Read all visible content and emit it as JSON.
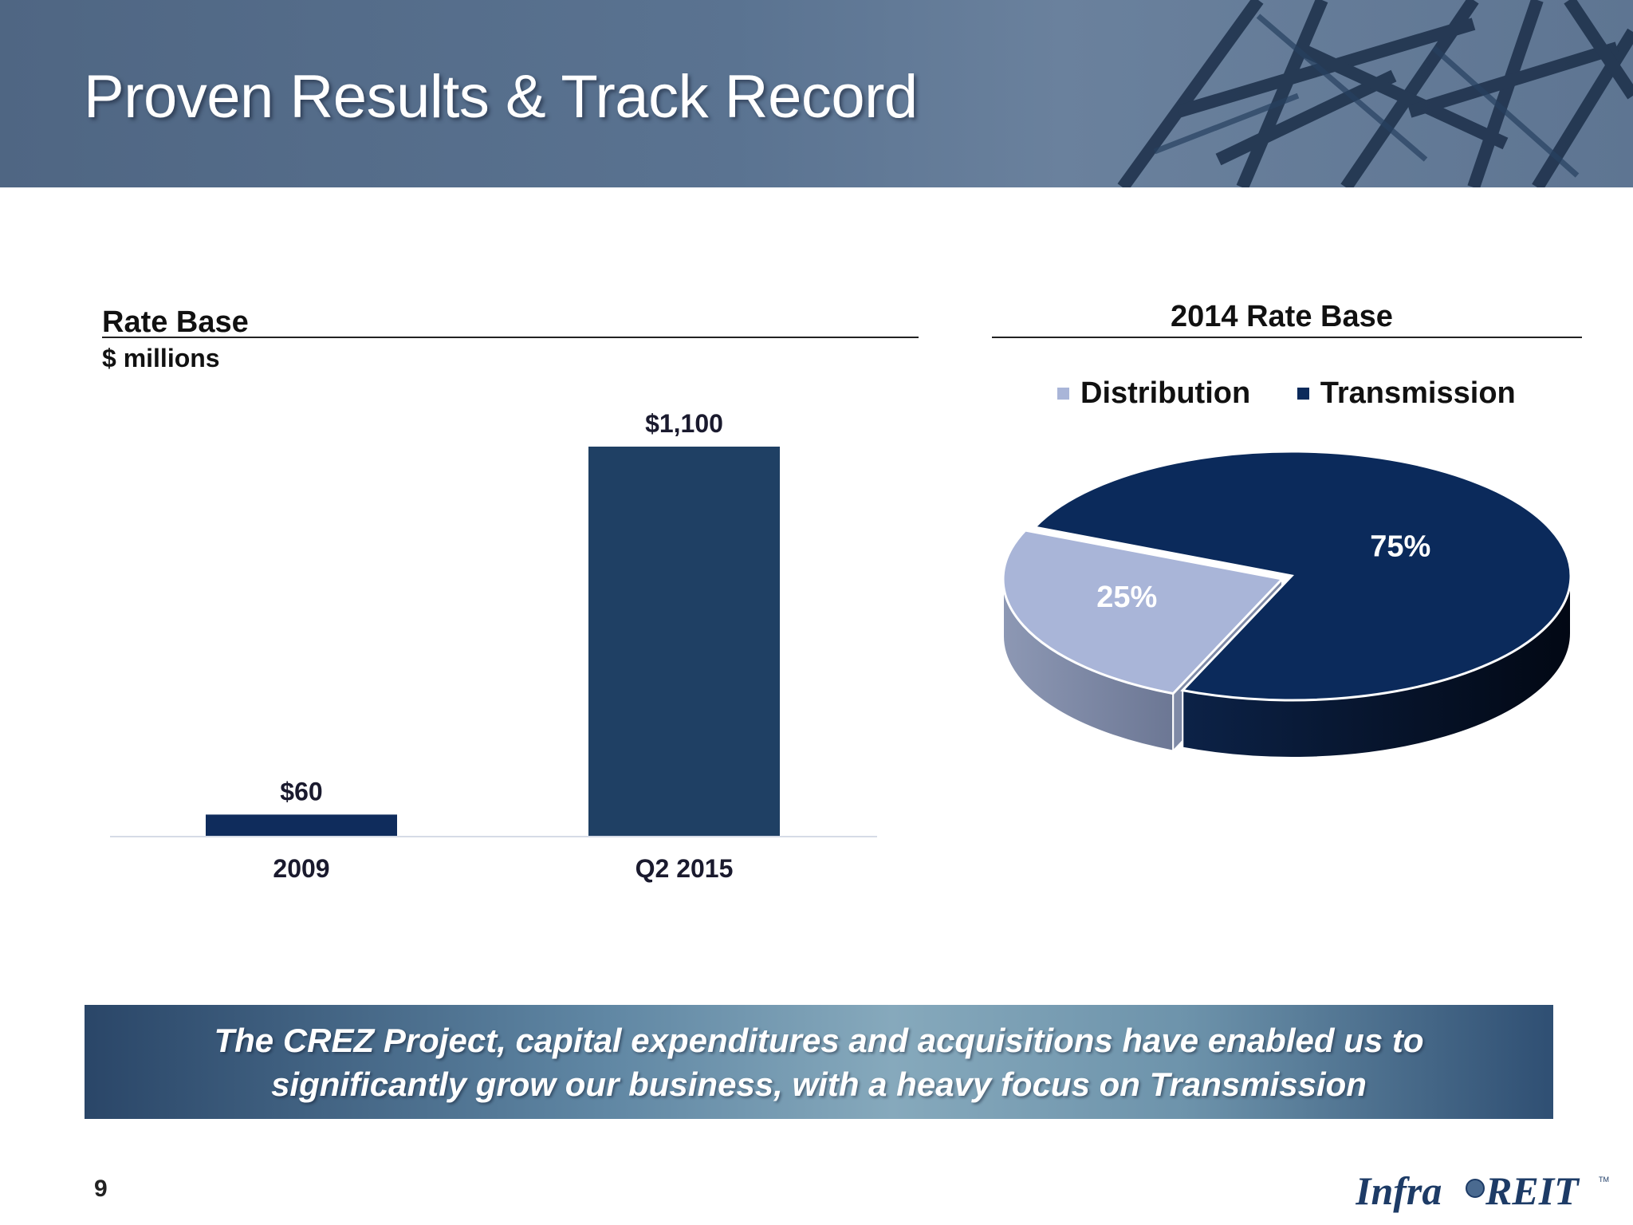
{
  "slide": {
    "title": "Proven Results & Track Record",
    "page_number": "9",
    "banner_lines": [
      "The CREZ Project, capital expenditures and acquisitions have enabled us to",
      "significantly grow our business, with a heavy focus on Transmission"
    ],
    "logo_text": "InfraREIT"
  },
  "colors": {
    "header_blue": "#56708f",
    "bar_navy_2009": "#0f2c5c",
    "bar_navy_2015": "#1f4064",
    "distribution": "#a9b5d8",
    "transmission": "#0b2a5b"
  },
  "chart_data": [
    {
      "type": "bar",
      "title": "Rate Base",
      "subtitle": "$ millions",
      "categories": [
        "2009",
        "Q2 2015"
      ],
      "values": [
        60,
        1100
      ],
      "data_labels": [
        "$60",
        "$1,100"
      ],
      "ylim": [
        0,
        1100
      ],
      "grid": false
    },
    {
      "type": "pie",
      "title": "2014 Rate Base",
      "legend_position": "top",
      "slices": [
        {
          "name": "Distribution",
          "value": 25,
          "label": "25%"
        },
        {
          "name": "Transmission",
          "value": 75,
          "label": "75%"
        }
      ]
    }
  ]
}
